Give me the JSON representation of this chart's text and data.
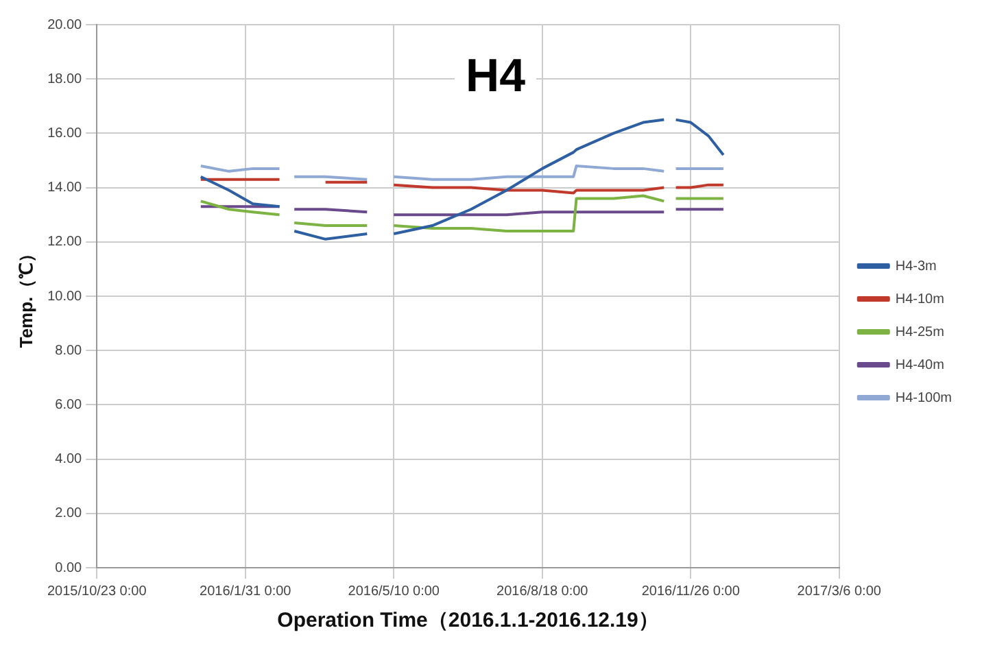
{
  "chart_data": {
    "type": "line",
    "title": "H4",
    "xlabel": "Operation Time（2016.1.1-2016.12.19）",
    "ylabel": "Temp.（℃）",
    "x": [
      "2016-01-01",
      "2016-01-20",
      "2016-02-05",
      "2016-02-23",
      "2016-02-28",
      "2016-03-04",
      "2016-03-25",
      "2016-04-22",
      "2016-05-01",
      "2016-05-10",
      "2016-06-05",
      "2016-07-01",
      "2016-07-25",
      "2016-08-18",
      "2016-09-08",
      "2016-09-10",
      "2016-10-05",
      "2016-10-25",
      "2016-11-08",
      "2016-11-12",
      "2016-11-16",
      "2016-11-26",
      "2016-12-08",
      "2016-12-18"
    ],
    "series": [
      {
        "name": "H4-3m",
        "color": "#2e5fa3",
        "values": [
          14.4,
          13.9,
          13.4,
          13.3,
          null,
          12.4,
          12.1,
          12.3,
          null,
          12.3,
          12.6,
          13.2,
          13.9,
          14.7,
          15.3,
          15.4,
          16.0,
          16.4,
          16.5,
          null,
          16.5,
          16.4,
          15.9,
          15.2
        ]
      },
      {
        "name": "H4-10m",
        "color": "#c0392b",
        "values": [
          14.3,
          14.3,
          14.3,
          14.3,
          null,
          null,
          14.2,
          14.2,
          null,
          14.1,
          14.0,
          14.0,
          13.9,
          13.9,
          13.8,
          13.9,
          13.9,
          13.9,
          14.0,
          null,
          14.0,
          14.0,
          14.1,
          14.1
        ]
      },
      {
        "name": "H4-25m",
        "color": "#7cb342",
        "values": [
          13.5,
          13.2,
          13.1,
          13.0,
          null,
          12.7,
          12.6,
          12.6,
          null,
          12.6,
          12.5,
          12.5,
          12.4,
          12.4,
          12.4,
          13.6,
          13.6,
          13.7,
          13.5,
          null,
          13.6,
          13.6,
          13.6,
          13.6
        ]
      },
      {
        "name": "H4-40m",
        "color": "#6a4a8c",
        "values": [
          13.3,
          13.3,
          13.3,
          13.3,
          null,
          13.2,
          13.2,
          13.1,
          null,
          13.0,
          13.0,
          13.0,
          13.0,
          13.1,
          13.1,
          13.1,
          13.1,
          13.1,
          13.1,
          null,
          13.2,
          13.2,
          13.2,
          13.2
        ]
      },
      {
        "name": "H4-100m",
        "color": "#8fa9d4",
        "values": [
          14.8,
          14.6,
          14.7,
          14.7,
          null,
          14.4,
          14.4,
          14.3,
          null,
          14.4,
          14.3,
          14.3,
          14.4,
          14.4,
          14.4,
          14.8,
          14.7,
          14.7,
          14.6,
          null,
          14.7,
          14.7,
          14.7,
          14.7
        ]
      }
    ],
    "xlim": [
      "2015-10-23",
      "2017-03-06"
    ],
    "xticks": [
      {
        "value": "2015-10-23",
        "label": "2015/10/23 0:00"
      },
      {
        "value": "2016-01-31",
        "label": "2016/1/31 0:00"
      },
      {
        "value": "2016-05-10",
        "label": "2016/5/10 0:00"
      },
      {
        "value": "2016-08-18",
        "label": "2016/8/18 0:00"
      },
      {
        "value": "2016-11-26",
        "label": "2016/11/26 0:00"
      },
      {
        "value": "2017-03-06",
        "label": "2017/3/6 0:00"
      }
    ],
    "ylim": [
      0,
      20
    ],
    "yticks": [
      {
        "value": 0,
        "label": "0.00"
      },
      {
        "value": 2,
        "label": "2.00"
      },
      {
        "value": 4,
        "label": "4.00"
      },
      {
        "value": 6,
        "label": "6.00"
      },
      {
        "value": 8,
        "label": "8.00"
      },
      {
        "value": 10,
        "label": "10.00"
      },
      {
        "value": 12,
        "label": "12.00"
      },
      {
        "value": 14,
        "label": "14.00"
      },
      {
        "value": 16,
        "label": "16.00"
      },
      {
        "value": 18,
        "label": "18.00"
      },
      {
        "value": 20,
        "label": "20.00"
      }
    ],
    "grid": true,
    "legend": "right",
    "marker": "none",
    "line_style": "solid"
  }
}
